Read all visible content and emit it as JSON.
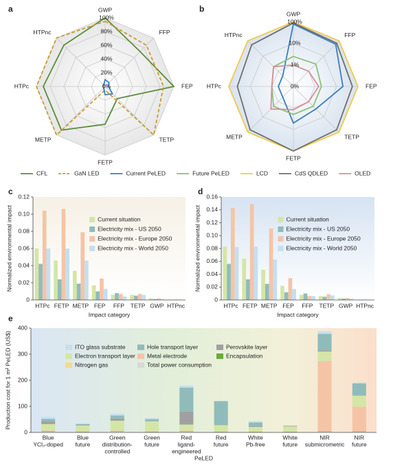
{
  "chart_data": [
    {
      "type": "radar",
      "label": "a",
      "axes": [
        "GWP",
        "FFP",
        "FEP",
        "TETP",
        "FETP",
        "METP",
        "HTPc",
        "HTPnc"
      ],
      "rlim": [
        0,
        100
      ],
      "rticks": [
        {
          "value": 0,
          "label": "0%"
        },
        {
          "value": 20,
          "label": "20%"
        },
        {
          "value": 40,
          "label": "40%"
        },
        {
          "value": 60,
          "label": "60%"
        },
        {
          "value": 80,
          "label": "80%"
        },
        {
          "value": 100,
          "label": "100%"
        }
      ],
      "series": [
        {
          "name": "CFL",
          "color": "#5b8c3a",
          "values": [
            100,
            72,
            100,
            25,
            55,
            90,
            90,
            85
          ]
        },
        {
          "name": "GaN LED",
          "color": "#c99a2e",
          "dashed": true,
          "values": [
            95,
            85,
            85,
            100,
            5,
            100,
            100,
            100
          ]
        },
        {
          "name": "Current PeLED",
          "color": "#3a7ebf",
          "values": [
            10,
            8,
            5,
            15,
            12,
            3,
            3,
            3
          ]
        }
      ]
    },
    {
      "type": "radar",
      "label": "b",
      "axes": [
        "GWP",
        "FFP",
        "FEP",
        "TETP",
        "FETP",
        "METP",
        "HTPc",
        "HTPnc"
      ],
      "log_scale": true,
      "rlim": [
        0.1,
        100
      ],
      "rticks": [
        {
          "value": 0.1,
          "label": "0%"
        },
        {
          "value": 1,
          "label": "1%"
        },
        {
          "value": 10,
          "label": "10%"
        },
        {
          "value": 100,
          "label": "100%"
        }
      ],
      "series": [
        {
          "name": "Current PeLED",
          "color": "#3a7ebf",
          "values": [
            80,
            60,
            20,
            3,
            5,
            0.5,
            0.5,
            0.5
          ]
        },
        {
          "name": "Future PeLED",
          "color": "#8cc07a",
          "values": [
            2.5,
            3,
            2,
            2,
            2,
            2,
            1,
            2
          ]
        },
        {
          "name": "LCD",
          "color": "#f2c94c",
          "values": [
            100,
            100,
            100,
            100,
            100,
            100,
            100,
            100
          ]
        },
        {
          "name": "CdS QDLED",
          "color": "#6e6e6e",
          "values": [
            90,
            70,
            55,
            70,
            100,
            70,
            40,
            55
          ]
        },
        {
          "name": "OLED",
          "color": "#d98c9a",
          "values": [
            1,
            1,
            1.5,
            1,
            1.2,
            3,
            1,
            2
          ]
        }
      ]
    },
    {
      "type": "grouped_bar",
      "label": "c",
      "x_label": "Impact category",
      "y_label": "Normalized environmental impact",
      "categories": [
        "HTPc",
        "FETP",
        "METP",
        "FEP",
        "FFP",
        "TETP",
        "GWP",
        "HTPnc"
      ],
      "ylim": [
        0,
        0.12
      ],
      "yticks": [
        0,
        0.02,
        0.04,
        0.06,
        0.08,
        {
          "value": 0.1,
          "label": "0.10"
        },
        0.12
      ],
      "series": [
        {
          "name": "Current situation",
          "color": "#d4e6a5",
          "values": [
            0.06,
            0.046,
            0.034,
            0.017,
            0.006,
            0.006,
            0.002,
            0.0005
          ]
        },
        {
          "name": "Electricity mix - US 2050",
          "color": "#8fbcbb",
          "values": [
            0.042,
            0.024,
            0.019,
            0.01,
            0.008,
            0.005,
            0.001,
            0.0003
          ]
        },
        {
          "name": "Electricity mix - Europe 2050",
          "color": "#f5c4a7",
          "values": [
            0.104,
            0.106,
            0.079,
            0.025,
            0.007,
            0.007,
            0.002,
            0.0005
          ]
        },
        {
          "name": "Electricity mix - World 2050",
          "color": "#c5dff0",
          "values": [
            0.06,
            0.06,
            0.046,
            0.013,
            0.004,
            0.006,
            0.001,
            0.0003
          ]
        }
      ]
    },
    {
      "type": "grouped_bar",
      "label": "d",
      "x_label": "Impact category",
      "y_label": "Normalized environmental impact",
      "categories": [
        "HTPc",
        "FETP",
        "METP",
        "FEP",
        "FFP",
        "TETP",
        "GWP",
        "HTPnc"
      ],
      "ylim": [
        0,
        0.16
      ],
      "yticks": [
        0,
        0.02,
        0.04,
        0.06,
        0.08,
        {
          "value": 0.1,
          "label": "0.10"
        },
        0.12,
        0.14,
        0.16
      ],
      "series": [
        {
          "name": "Current situation",
          "color": "#d4e6a5",
          "values": [
            0.083,
            0.064,
            0.047,
            0.022,
            0.008,
            0.006,
            0.003,
            0.0005
          ]
        },
        {
          "name": "Electricity mix - US 2050",
          "color": "#8fbcbb",
          "values": [
            0.056,
            0.032,
            0.025,
            0.012,
            0.01,
            0.005,
            0.002,
            0.0003
          ]
        },
        {
          "name": "Electricity mix - Europe 2050",
          "color": "#f5c4a7",
          "values": [
            0.143,
            0.149,
            0.111,
            0.034,
            0.006,
            0.009,
            0.003,
            0.0005
          ]
        },
        {
          "name": "Electricity mix - World 2050",
          "color": "#c5dff0",
          "values": [
            0.082,
            0.083,
            0.063,
            0.017,
            0.006,
            0.007,
            0.002,
            0.0003
          ]
        }
      ]
    },
    {
      "type": "stacked_bar",
      "label": "e",
      "x_label": "PeLED",
      "y_label": "Production cost for 1 m² PeLED (US$)",
      "categories": [
        [
          "Blue",
          "YCl₃-doped"
        ],
        [
          "Blue",
          "future"
        ],
        [
          "Green",
          "distribution-",
          "controlled"
        ],
        [
          "Green",
          "future"
        ],
        [
          "Red",
          "ligand-",
          "engineered"
        ],
        [
          "Red",
          "future"
        ],
        [
          "White",
          "Pb-free"
        ],
        [
          "White",
          "future"
        ],
        [
          "NIR",
          "submicrometric"
        ],
        [
          "NIR",
          "future"
        ]
      ],
      "ylim": [
        0,
        400
      ],
      "yticks": [
        0,
        100,
        200,
        300,
        400
      ],
      "series": [
        {
          "name": "ITO glass substrate",
          "color": "#c5e0f0",
          "values": [
            8,
            3,
            7,
            4,
            8,
            0,
            5,
            1,
            10,
            3
          ]
        },
        {
          "name": "Hole transport layer",
          "color": "#8fbcbb",
          "values": [
            10,
            3,
            12,
            6,
            92,
            90,
            14,
            2,
            63,
            45
          ]
        },
        {
          "name": "Perovskite layer",
          "color": "#a0a0a0",
          "values": [
            10,
            2,
            8,
            2,
            50,
            2,
            3,
            1,
            5,
            2
          ]
        },
        {
          "name": "Electron transport layer",
          "color": "#d4e6a5",
          "values": [
            25,
            22,
            38,
            38,
            23,
            23,
            16,
            18,
            36,
            42
          ]
        },
        {
          "name": "Metal electrode",
          "color": "#f5c4a7",
          "values": [
            3,
            2,
            3,
            2,
            3,
            2,
            2,
            2,
            270,
            95
          ]
        },
        {
          "name": "Encapsulation",
          "color": "#6aaa3a",
          "values": [
            1,
            1,
            1,
            1,
            1,
            1,
            1,
            1,
            1,
            1
          ]
        },
        {
          "name": "Nitrogen gas",
          "color": "#f7d98a",
          "values": [
            1,
            1,
            1,
            1,
            1,
            1,
            1,
            1,
            1,
            1
          ]
        },
        {
          "name": "Total power consumption",
          "color": "#d9d9d9",
          "values": [
            2,
            1,
            2,
            1,
            2,
            1,
            1,
            1,
            2,
            2
          ]
        }
      ]
    }
  ]
}
